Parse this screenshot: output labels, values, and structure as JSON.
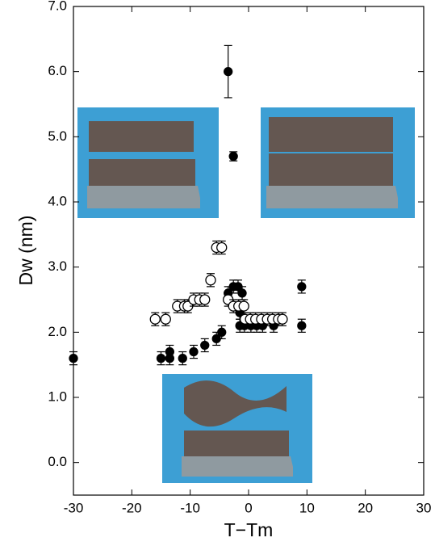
{
  "chart_data": {
    "type": "scatter",
    "xlabel": "T−Tm",
    "ylabel": "Dw (nm)",
    "xlim": [
      -30,
      30
    ],
    "ylim": [
      -0.5,
      7.0
    ],
    "xticks": [
      -30,
      -20,
      -10,
      0,
      10,
      20,
      30
    ],
    "yticks": [
      {
        "value": 0,
        "label": "0.0"
      },
      {
        "value": 1,
        "label": "1.0"
      },
      {
        "value": 2,
        "label": "2.0"
      },
      {
        "value": 3,
        "label": "3.0"
      },
      {
        "value": 4,
        "label": "4.0"
      },
      {
        "value": 5,
        "label": "5.0"
      },
      {
        "value": 6,
        "label": "6.0"
      },
      {
        "value": 7,
        "label": "7.0"
      }
    ],
    "series": [
      {
        "marker": "filled",
        "color": "#000000",
        "x": [
          -30,
          -15,
          -13.5,
          -13.5,
          -11.3,
          -9.4,
          -7.5,
          -5.5,
          -4.6,
          -3.5,
          -3.5,
          -2.6,
          -2.6,
          -1.8,
          -1.1,
          -1.5,
          -1.5,
          -0.7,
          0.4,
          1.4,
          2.4,
          4.3,
          9.1,
          9.1
        ],
        "y": [
          1.6,
          1.6,
          1.7,
          1.6,
          1.6,
          1.7,
          1.8,
          1.9,
          2.0,
          6.0,
          2.6,
          4.7,
          2.7,
          2.7,
          2.6,
          2.3,
          2.1,
          2.1,
          2.1,
          2.1,
          2.1,
          2.1,
          2.7,
          2.1
        ],
        "errors": [
          0.1,
          0.1,
          0.1,
          0.1,
          0.1,
          0.1,
          0.1,
          0.1,
          0.1,
          0.4,
          0.1,
          0.07,
          0.1,
          0.1,
          0.1,
          0.1,
          0.1,
          0.1,
          0.1,
          0.1,
          0.1,
          0.1,
          0.1,
          0.1
        ]
      },
      {
        "marker": "open",
        "color": "#000000",
        "x": [
          -16,
          -14.2,
          -12.2,
          -11,
          -10.4,
          -9.4,
          -8.4,
          -7.5,
          -6.5,
          -5.5,
          -4.6,
          -3.5,
          -2.6,
          -1.7,
          -0.8,
          -0.6,
          0.3,
          1.2,
          2.2,
          3.2,
          4.1,
          5.1,
          5.8
        ],
        "y": [
          2.2,
          2.2,
          2.4,
          2.4,
          2.4,
          2.5,
          2.5,
          2.5,
          2.8,
          3.3,
          3.3,
          2.5,
          2.4,
          2.4,
          2.4,
          2.2,
          2.2,
          2.2,
          2.2,
          2.2,
          2.2,
          2.2,
          2.2
        ],
        "errors": [
          0.1,
          0.1,
          0.1,
          0.1,
          0.1,
          0.1,
          0.1,
          0.1,
          0.1,
          0.1,
          0.1,
          0.1,
          0.1,
          0.1,
          0.1,
          0.1,
          0.1,
          0.1,
          0.1,
          0.1,
          0.1,
          0.1,
          0.1
        ]
      }
    ]
  }
}
